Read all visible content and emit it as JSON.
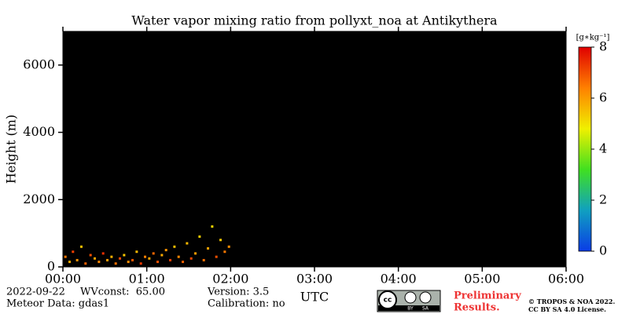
{
  "chart_data": {
    "type": "heatmap",
    "title": "Water vapor mixing ratio from pollyxt_noa at Antikythera",
    "xlabel": "UTC",
    "ylabel": "Height (m)",
    "background": "#000000",
    "xlim": [
      0,
      6
    ],
    "xticks": [
      {
        "value": 0,
        "label": "00:00"
      },
      {
        "value": 1,
        "label": "01:00"
      },
      {
        "value": 2,
        "label": "02:00"
      },
      {
        "value": 3,
        "label": "03:00"
      },
      {
        "value": 4,
        "label": "04:00"
      },
      {
        "value": 5,
        "label": "05:00"
      },
      {
        "value": 6,
        "label": "06:00"
      }
    ],
    "ylim": [
      0,
      7000
    ],
    "yticks": [
      0,
      2000,
      4000,
      6000
    ],
    "x": [
      0.03,
      0.08,
      0.12,
      0.17,
      0.22,
      0.27,
      0.33,
      0.38,
      0.43,
      0.48,
      0.53,
      0.58,
      0.63,
      0.68,
      0.73,
      0.78,
      0.83,
      0.88,
      0.93,
      0.98,
      1.03,
      1.08,
      1.13,
      1.18,
      1.23,
      1.28,
      1.33,
      1.38,
      1.43,
      1.48,
      1.53,
      1.58,
      1.63,
      1.68,
      1.73,
      1.78,
      1.83,
      1.88,
      1.93,
      1.98
    ],
    "y": [
      300,
      150,
      450,
      200,
      600,
      100,
      350,
      250,
      150,
      400,
      200,
      300,
      100,
      250,
      350,
      150,
      200,
      450,
      100,
      300,
      250,
      400,
      150,
      350,
      500,
      200,
      600,
      300,
      150,
      700,
      250,
      400,
      900,
      200,
      550,
      1200,
      300,
      800,
      450,
      600
    ],
    "values": [
      6.5,
      5.8,
      7.2,
      6.1,
      5.5,
      6.8,
      7.0,
      5.9,
      6.3,
      7.4,
      6.0,
      5.7,
      6.6,
      7.1,
      5.4,
      6.2,
      6.9,
      5.6,
      7.3,
      6.4,
      5.9,
      6.7,
      7.0,
      5.8,
      6.1,
      7.2,
      5.5,
      6.3,
      6.8,
      5.6,
      7.1,
      6.0,
      5.3,
      6.6,
      5.9,
      5.2,
      7.0,
      5.4,
      6.5,
      6.2
    ],
    "colorbar": {
      "label": "[g∗kg⁻¹]",
      "lim": [
        0,
        8
      ],
      "ticks": [
        0,
        2,
        4,
        6,
        8
      ],
      "colors": [
        "#0a3ce6",
        "#10a0c0",
        "#40e020",
        "#f0f000",
        "#ff8000",
        "#e00000"
      ]
    }
  },
  "footer": {
    "date": "2022-09-22",
    "wvconst": "WVconst:  65.00",
    "meteor": "Meteor Data: gdas1",
    "version": "Version: 3.5",
    "calibration": "Calibration: no",
    "badge": [
      "BY",
      "SA"
    ],
    "preliminary": [
      "Preliminary",
      "Results."
    ],
    "copyright": [
      "© TROPOS & NOA 2022.",
      "CC BY SA 4.0 License."
    ]
  }
}
